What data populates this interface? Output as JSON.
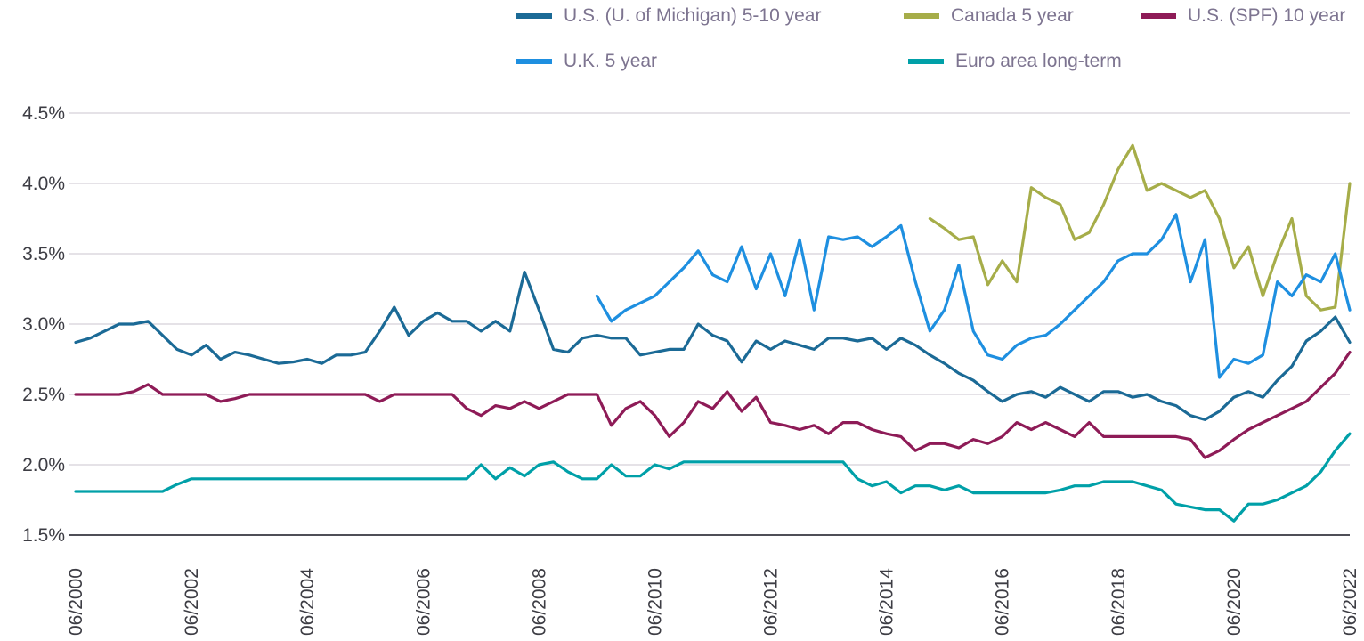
{
  "chart_data": {
    "type": "line",
    "title": "",
    "xlabel": "",
    "ylabel": "",
    "xlim": [
      2000.5,
      2022.5
    ],
    "ylim": [
      1.5,
      4.5
    ],
    "grid": "horizontal",
    "legend_position": "top",
    "y_ticks": [
      {
        "value": 1.5,
        "label": "1.5%"
      },
      {
        "value": 2.0,
        "label": "2.0%"
      },
      {
        "value": 2.5,
        "label": "2.5%"
      },
      {
        "value": 3.0,
        "label": "3.0%"
      },
      {
        "value": 3.5,
        "label": "3.5%"
      },
      {
        "value": 4.0,
        "label": "4.0%"
      },
      {
        "value": 4.5,
        "label": "4.5%"
      }
    ],
    "x_ticks": [
      {
        "value": 2000.5,
        "label": "06/2000"
      },
      {
        "value": 2002.5,
        "label": "06/2002"
      },
      {
        "value": 2004.5,
        "label": "06/2004"
      },
      {
        "value": 2006.5,
        "label": "06/2006"
      },
      {
        "value": 2008.5,
        "label": "06/2008"
      },
      {
        "value": 2010.5,
        "label": "06/2010"
      },
      {
        "value": 2012.5,
        "label": "06/2012"
      },
      {
        "value": 2014.5,
        "label": "06/2014"
      },
      {
        "value": 2016.5,
        "label": "06/2016"
      },
      {
        "value": 2018.5,
        "label": "06/2018"
      },
      {
        "value": 2020.5,
        "label": "06/2020"
      },
      {
        "value": 2022.5,
        "label": "06/2022"
      }
    ],
    "series": [
      {
        "name": "U.S. (U. of Michigan) 5-10 year",
        "color": "#1b6a96",
        "x_start": 2000.5,
        "x_step": 0.25,
        "values": [
          2.87,
          2.9,
          2.95,
          3.0,
          3.0,
          3.02,
          2.92,
          2.82,
          2.78,
          2.85,
          2.75,
          2.8,
          2.78,
          2.75,
          2.72,
          2.73,
          2.75,
          2.72,
          2.78,
          2.78,
          2.8,
          2.95,
          3.12,
          2.92,
          3.02,
          3.08,
          3.02,
          3.02,
          2.95,
          3.02,
          2.95,
          3.37,
          3.1,
          2.82,
          2.8,
          2.9,
          2.92,
          2.9,
          2.9,
          2.78,
          2.8,
          2.82,
          2.82,
          3.0,
          2.92,
          2.88,
          2.73,
          2.88,
          2.82,
          2.88,
          2.85,
          2.82,
          2.9,
          2.9,
          2.88,
          2.9,
          2.82,
          2.9,
          2.85,
          2.78,
          2.72,
          2.65,
          2.6,
          2.52,
          2.45,
          2.5,
          2.52,
          2.48,
          2.55,
          2.5,
          2.45,
          2.52,
          2.52,
          2.48,
          2.5,
          2.45,
          2.42,
          2.35,
          2.32,
          2.38,
          2.48,
          2.52,
          2.48,
          2.6,
          2.7,
          2.88,
          2.95,
          3.05,
          2.87
        ]
      },
      {
        "name": "Canada 5 year",
        "color": "#a6ad49",
        "x_start": 2015.25,
        "x_step": 0.25,
        "values": [
          3.75,
          3.68,
          3.6,
          3.62,
          3.28,
          3.45,
          3.3,
          3.97,
          3.9,
          3.85,
          3.6,
          3.65,
          3.85,
          4.1,
          4.27,
          3.95,
          4.0,
          3.95,
          3.9,
          3.95,
          3.75,
          3.4,
          3.55,
          3.2,
          3.5,
          3.75,
          3.2,
          3.1,
          3.12,
          4.0
        ]
      },
      {
        "name": "U.S. (SPF) 10 year",
        "color": "#8e1b57",
        "x_start": 2000.5,
        "x_step": 0.25,
        "values": [
          2.5,
          2.5,
          2.5,
          2.5,
          2.52,
          2.57,
          2.5,
          2.5,
          2.5,
          2.5,
          2.45,
          2.47,
          2.5,
          2.5,
          2.5,
          2.5,
          2.5,
          2.5,
          2.5,
          2.5,
          2.5,
          2.45,
          2.5,
          2.5,
          2.5,
          2.5,
          2.5,
          2.4,
          2.35,
          2.42,
          2.4,
          2.45,
          2.4,
          2.45,
          2.5,
          2.5,
          2.5,
          2.28,
          2.4,
          2.45,
          2.35,
          2.2,
          2.3,
          2.45,
          2.4,
          2.52,
          2.38,
          2.48,
          2.3,
          2.28,
          2.25,
          2.28,
          2.22,
          2.3,
          2.3,
          2.25,
          2.22,
          2.2,
          2.1,
          2.15,
          2.15,
          2.12,
          2.18,
          2.15,
          2.2,
          2.3,
          2.25,
          2.3,
          2.25,
          2.2,
          2.3,
          2.2,
          2.2,
          2.2,
          2.2,
          2.2,
          2.2,
          2.18,
          2.05,
          2.1,
          2.18,
          2.25,
          2.3,
          2.35,
          2.4,
          2.45,
          2.55,
          2.65,
          2.8
        ]
      },
      {
        "name": "U.K. 5 year",
        "color": "#1e8fe0",
        "x_start": 2009.5,
        "x_step": 0.25,
        "values": [
          3.2,
          3.02,
          3.1,
          3.15,
          3.2,
          3.3,
          3.4,
          3.52,
          3.35,
          3.3,
          3.55,
          3.25,
          3.5,
          3.2,
          3.6,
          3.1,
          3.62,
          3.6,
          3.62,
          3.55,
          3.62,
          3.7,
          3.3,
          2.95,
          3.1,
          3.42,
          2.95,
          2.78,
          2.75,
          2.85,
          2.9,
          2.92,
          3.0,
          3.1,
          3.2,
          3.3,
          3.45,
          3.5,
          3.5,
          3.6,
          3.78,
          3.3,
          3.6,
          2.62,
          2.75,
          2.72,
          2.78,
          3.3,
          3.2,
          3.35,
          3.3,
          3.5,
          3.1
        ]
      },
      {
        "name": "Euro area long-term",
        "color": "#00a0a8",
        "x_start": 2000.5,
        "x_step": 0.25,
        "values": [
          1.81,
          1.81,
          1.81,
          1.81,
          1.81,
          1.81,
          1.81,
          1.86,
          1.9,
          1.9,
          1.9,
          1.9,
          1.9,
          1.9,
          1.9,
          1.9,
          1.9,
          1.9,
          1.9,
          1.9,
          1.9,
          1.9,
          1.9,
          1.9,
          1.9,
          1.9,
          1.9,
          1.9,
          2.0,
          1.9,
          1.98,
          1.92,
          2.0,
          2.02,
          1.95,
          1.9,
          1.9,
          2.0,
          1.92,
          1.92,
          2.0,
          1.97,
          2.02,
          2.02,
          2.02,
          2.02,
          2.02,
          2.02,
          2.02,
          2.02,
          2.02,
          2.02,
          2.02,
          2.02,
          1.9,
          1.85,
          1.88,
          1.8,
          1.85,
          1.85,
          1.82,
          1.85,
          1.8,
          1.8,
          1.8,
          1.8,
          1.8,
          1.8,
          1.82,
          1.85,
          1.85,
          1.88,
          1.88,
          1.88,
          1.85,
          1.82,
          1.72,
          1.7,
          1.68,
          1.68,
          1.6,
          1.72,
          1.72,
          1.75,
          1.8,
          1.85,
          1.95,
          2.1,
          2.22
        ]
      }
    ]
  },
  "style": {
    "gridline_color": "#cbc6cf",
    "axis_line_color": "#4f4f57",
    "tick_label_color": "#3d3d44",
    "legend_text_color": "#7d7490",
    "background_color": "#ffffff"
  }
}
